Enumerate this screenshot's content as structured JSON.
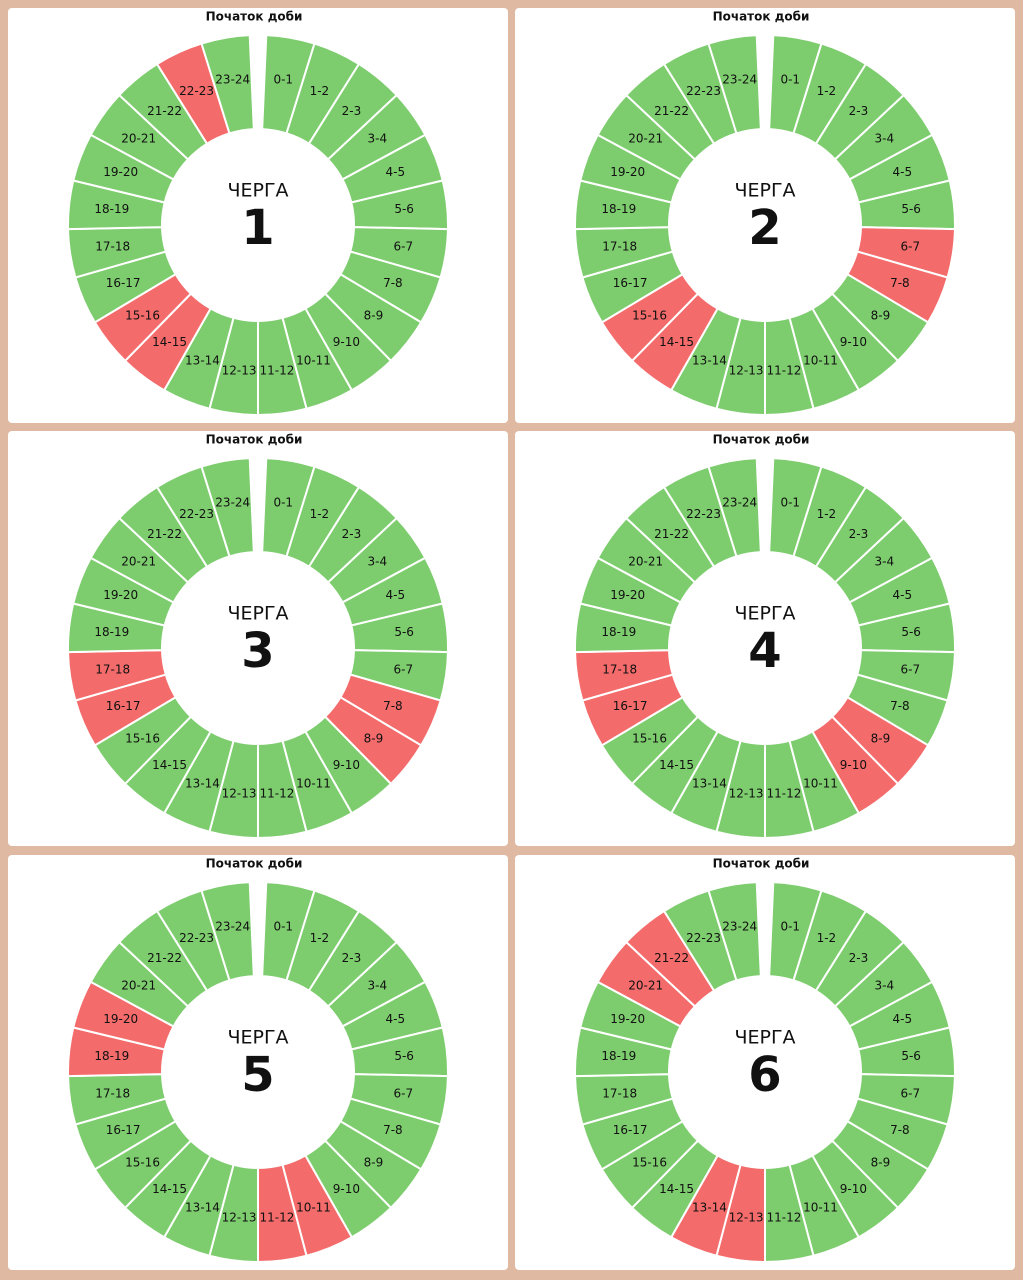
{
  "panels": [
    {
      "header": "Початок доби",
      "label": "ЧЕРГА",
      "number": "1",
      "segments": [
        "0-1",
        "1-2",
        "2-3",
        "3-4",
        "4-5",
        "5-6",
        "6-7",
        "7-8",
        "8-9",
        "9-10",
        "10-11",
        "11-12",
        "12-13",
        "13-14",
        "14-15",
        "15-16",
        "16-17",
        "17-18",
        "18-19",
        "19-20",
        "20-21",
        "21-22",
        "22-23",
        "23-24"
      ],
      "colors": [
        "#7dcd6e",
        "#7dcd6e",
        "#7dcd6e",
        "#7dcd6e",
        "#7dcd6e",
        "#7dcd6e",
        "#7dcd6e",
        "#7dcd6e",
        "#7dcd6e",
        "#7dcd6e",
        "#7dcd6e",
        "#7dcd6e",
        "#7dcd6e",
        "#7dcd6e",
        "#f46b6b",
        "#f46b6b",
        "#7dcd6e",
        "#7dcd6e",
        "#7dcd6e",
        "#7dcd6e",
        "#7dcd6e",
        "#7dcd6e",
        "#f46b6b",
        "#7dcd6e"
      ]
    },
    {
      "header": "Початок доби",
      "label": "ЧЕРГА",
      "number": "2",
      "segments": [
        "0-1",
        "1-2",
        "2-3",
        "3-4",
        "4-5",
        "5-6",
        "6-7",
        "7-8",
        "8-9",
        "9-10",
        "10-11",
        "11-12",
        "12-13",
        "13-14",
        "14-15",
        "15-16",
        "16-17",
        "17-18",
        "18-19",
        "19-20",
        "20-21",
        "21-22",
        "22-23",
        "23-24"
      ],
      "colors": [
        "#7dcd6e",
        "#7dcd6e",
        "#7dcd6e",
        "#7dcd6e",
        "#7dcd6e",
        "#7dcd6e",
        "#f46b6b",
        "#f46b6b",
        "#7dcd6e",
        "#7dcd6e",
        "#7dcd6e",
        "#7dcd6e",
        "#7dcd6e",
        "#7dcd6e",
        "#f46b6b",
        "#f46b6b",
        "#7dcd6e",
        "#7dcd6e",
        "#7dcd6e",
        "#7dcd6e",
        "#7dcd6e",
        "#7dcd6e",
        "#7dcd6e",
        "#7dcd6e"
      ]
    },
    {
      "header": "Початок доби",
      "label": "ЧЕРГА",
      "number": "3",
      "segments": [
        "0-1",
        "1-2",
        "2-3",
        "3-4",
        "4-5",
        "5-6",
        "6-7",
        "7-8",
        "8-9",
        "9-10",
        "10-11",
        "11-12",
        "12-13",
        "13-14",
        "14-15",
        "15-16",
        "16-17",
        "17-18",
        "18-19",
        "19-20",
        "20-21",
        "21-22",
        "22-23",
        "23-24"
      ],
      "colors": [
        "#7dcd6e",
        "#7dcd6e",
        "#7dcd6e",
        "#7dcd6e",
        "#7dcd6e",
        "#7dcd6e",
        "#7dcd6e",
        "#f46b6b",
        "#f46b6b",
        "#7dcd6e",
        "#7dcd6e",
        "#7dcd6e",
        "#7dcd6e",
        "#7dcd6e",
        "#7dcd6e",
        "#7dcd6e",
        "#f46b6b",
        "#f46b6b",
        "#7dcd6e",
        "#7dcd6e",
        "#7dcd6e",
        "#7dcd6e",
        "#7dcd6e",
        "#7dcd6e"
      ]
    },
    {
      "header": "Початок доби",
      "label": "ЧЕРГА",
      "number": "4",
      "segments": [
        "0-1",
        "1-2",
        "2-3",
        "3-4",
        "4-5",
        "5-6",
        "6-7",
        "7-8",
        "8-9",
        "9-10",
        "10-11",
        "11-12",
        "12-13",
        "13-14",
        "14-15",
        "15-16",
        "16-17",
        "17-18",
        "18-19",
        "19-20",
        "20-21",
        "21-22",
        "22-23",
        "23-24"
      ],
      "colors": [
        "#7dcd6e",
        "#7dcd6e",
        "#7dcd6e",
        "#7dcd6e",
        "#7dcd6e",
        "#7dcd6e",
        "#7dcd6e",
        "#7dcd6e",
        "#f46b6b",
        "#f46b6b",
        "#7dcd6e",
        "#7dcd6e",
        "#7dcd6e",
        "#7dcd6e",
        "#7dcd6e",
        "#7dcd6e",
        "#f46b6b",
        "#f46b6b",
        "#7dcd6e",
        "#7dcd6e",
        "#7dcd6e",
        "#7dcd6e",
        "#7dcd6e",
        "#7dcd6e"
      ]
    },
    {
      "header": "Початок доби",
      "label": "ЧЕРГА",
      "number": "5",
      "segments": [
        "0-1",
        "1-2",
        "2-3",
        "3-4",
        "4-5",
        "5-6",
        "6-7",
        "7-8",
        "8-9",
        "9-10",
        "10-11",
        "11-12",
        "12-13",
        "13-14",
        "14-15",
        "15-16",
        "16-17",
        "17-18",
        "18-19",
        "19-20",
        "20-21",
        "21-22",
        "22-23",
        "23-24"
      ],
      "colors": [
        "#7dcd6e",
        "#7dcd6e",
        "#7dcd6e",
        "#7dcd6e",
        "#7dcd6e",
        "#7dcd6e",
        "#7dcd6e",
        "#7dcd6e",
        "#7dcd6e",
        "#7dcd6e",
        "#f46b6b",
        "#f46b6b",
        "#7dcd6e",
        "#7dcd6e",
        "#7dcd6e",
        "#7dcd6e",
        "#7dcd6e",
        "#7dcd6e",
        "#f46b6b",
        "#f46b6b",
        "#7dcd6e",
        "#7dcd6e",
        "#7dcd6e",
        "#7dcd6e"
      ]
    },
    {
      "header": "Початок доби",
      "label": "ЧЕРГА",
      "number": "6",
      "segments": [
        "0-1",
        "1-2",
        "2-3",
        "3-4",
        "4-5",
        "5-6",
        "6-7",
        "7-8",
        "8-9",
        "9-10",
        "10-11",
        "11-12",
        "12-13",
        "13-14",
        "14-15",
        "15-16",
        "16-17",
        "17-18",
        "18-19",
        "19-20",
        "20-21",
        "21-22",
        "22-23",
        "23-24"
      ],
      "colors": [
        "#7dcd6e",
        "#7dcd6e",
        "#7dcd6e",
        "#7dcd6e",
        "#7dcd6e",
        "#7dcd6e",
        "#7dcd6e",
        "#7dcd6e",
        "#7dcd6e",
        "#7dcd6e",
        "#7dcd6e",
        "#7dcd6e",
        "#f46b6b",
        "#f46b6b",
        "#7dcd6e",
        "#7dcd6e",
        "#7dcd6e",
        "#7dcd6e",
        "#7dcd6e",
        "#7dcd6e",
        "#f46b6b",
        "#f46b6b",
        "#7dcd6e",
        "#7dcd6e"
      ]
    }
  ]
}
